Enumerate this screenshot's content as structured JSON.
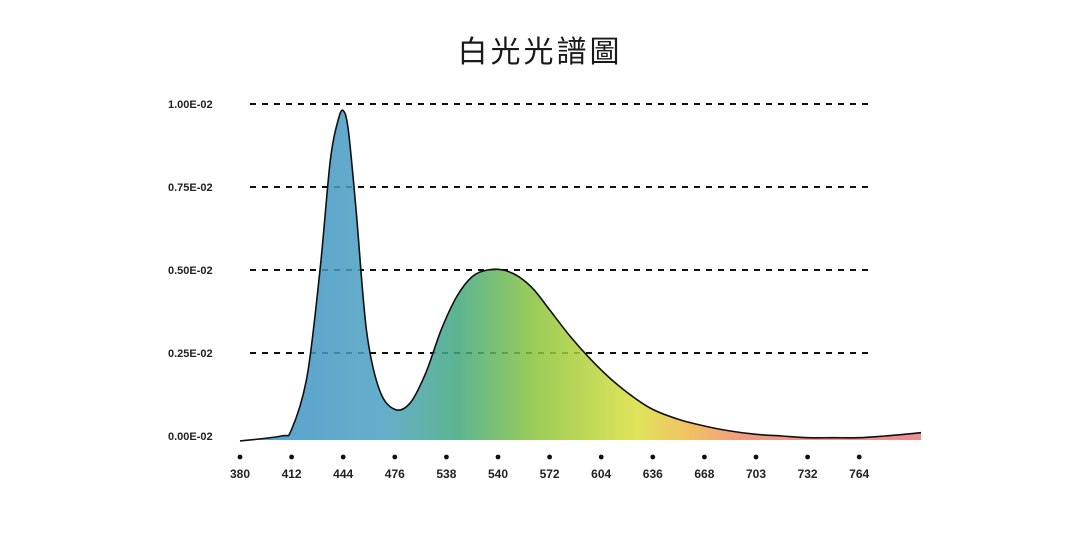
{
  "chart_data": {
    "type": "area",
    "title": "白光光譜圖",
    "xlabel": "",
    "ylabel": "",
    "x_tick_labels": [
      "380",
      "412",
      "444",
      "476",
      "538",
      "540",
      "572",
      "604",
      "636",
      "668",
      "703",
      "732",
      "764"
    ],
    "y_tick_labels": [
      "0.00E-02",
      "0.25E-02",
      "0.50E-02",
      "0.75E-02",
      "1.00E-02"
    ],
    "y_tick_values": [
      0,
      0.25,
      0.5,
      0.75,
      1.0
    ],
    "ylim": [
      0,
      1.0
    ],
    "grid": true,
    "series": [
      {
        "x_index": [
          0,
          0.8,
          1.0,
          1.3,
          1.55,
          1.75,
          1.9,
          2.0,
          2.1,
          2.25,
          2.45,
          2.7,
          3.0,
          3.3,
          3.6,
          3.9,
          4.2,
          4.5,
          4.8,
          5.1,
          5.4,
          5.7,
          6.0,
          6.4,
          6.8,
          7.2,
          7.6,
          8.0,
          8.5,
          9.0,
          9.5,
          10.0,
          10.5,
          11.0,
          11.5,
          12.0,
          12.5,
          13.2
        ],
        "values": [
          -0.015,
          0.0,
          0.02,
          0.18,
          0.5,
          0.83,
          0.95,
          0.98,
          0.92,
          0.68,
          0.32,
          0.14,
          0.08,
          0.1,
          0.19,
          0.32,
          0.42,
          0.48,
          0.5,
          0.5,
          0.48,
          0.44,
          0.38,
          0.3,
          0.23,
          0.17,
          0.12,
          0.08,
          0.05,
          0.03,
          0.015,
          0.005,
          0.0,
          -0.005,
          -0.005,
          -0.005,
          0.0,
          0.01
        ]
      }
    ],
    "colors": [
      "#3a8fc6",
      "#4aa0c0",
      "#3fa77e",
      "#8cc43a",
      "#d9df3d",
      "#f0b648",
      "#ee8a6a",
      "#e87a7e"
    ]
  }
}
